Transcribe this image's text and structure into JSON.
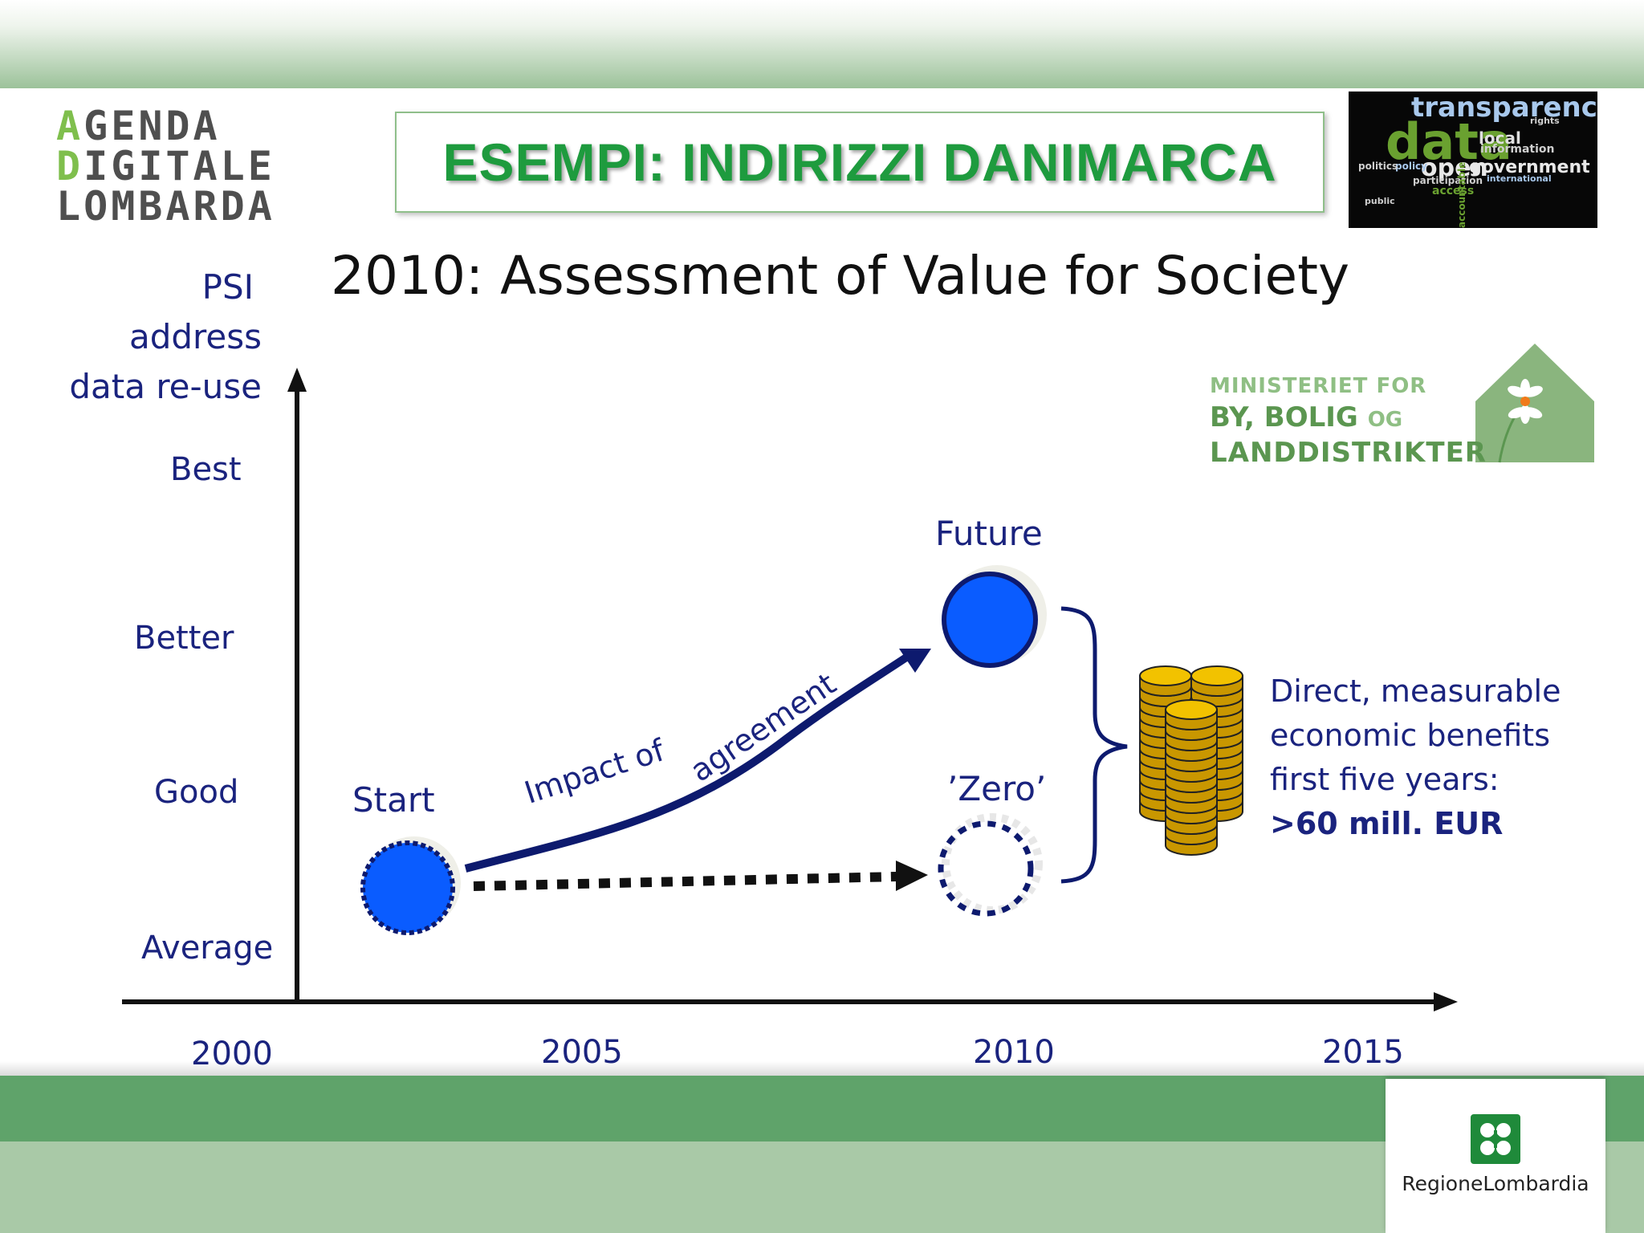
{
  "header": {
    "logo_left": [
      "AGENDA",
      "DIGITALE",
      "LOMBARDA"
    ],
    "title": "ESEMPI: INDIRIZZI DANIMARCA",
    "tag_cloud": {
      "words": [
        "transparency",
        "data",
        "local",
        "open",
        "government",
        "information",
        "policy",
        "politics",
        "participation",
        "access",
        "international",
        "accountable",
        "rights",
        "public"
      ]
    }
  },
  "slide": {
    "subtitle": "2010: Assessment of Value for Society",
    "y_axis_title": [
      "PSI",
      "address",
      "data re-use"
    ],
    "y_levels": [
      "Best",
      "Better",
      "Good",
      "Average"
    ],
    "x_years": [
      "2000",
      "2005",
      "2010",
      "2015"
    ],
    "nodes": {
      "start": "Start",
      "future": "Future",
      "zero": "’Zero’"
    },
    "impact_label_1": "Impact of",
    "impact_label_2": "agreement",
    "ministry_logo": {
      "line1": "MINISTERIET FOR",
      "line2_main": "BY, BOLIG",
      "line2_og": "OG",
      "line3": "LANDDISTRIKTER"
    },
    "benefit": {
      "line1": "Direct, measurable",
      "line2": "economic benefits",
      "line3": "first five years:",
      "line4": ">60 mill. EUR"
    }
  },
  "footer": {
    "regione": "RegioneLombardia"
  },
  "colors": {
    "title_green": "#1e9b3e",
    "navy": "#1a237e",
    "node_blue": "#0a5cff",
    "coin_gold": "#f2c200"
  }
}
